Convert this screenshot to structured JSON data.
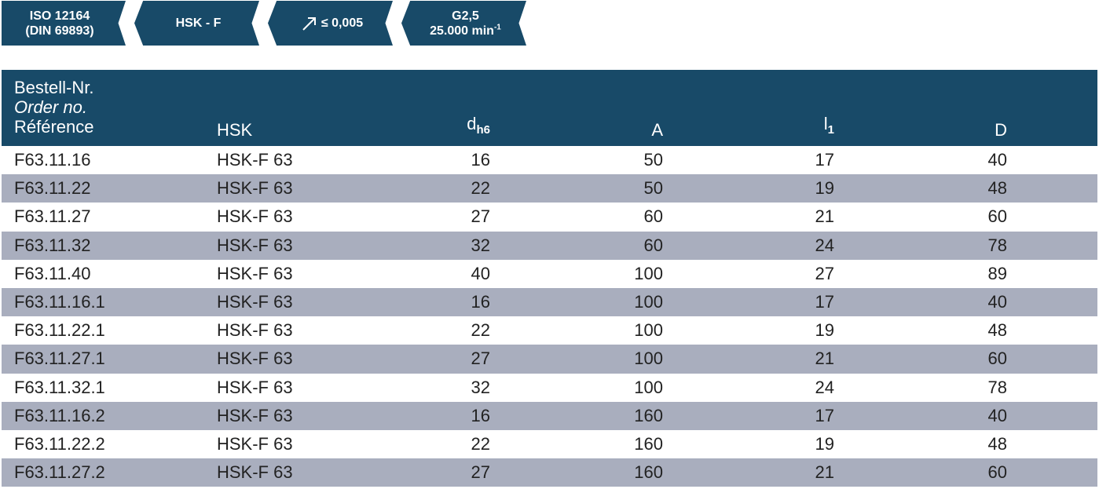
{
  "badges": {
    "norm": {
      "line1": "ISO 12164",
      "line2": "(DIN 69893)"
    },
    "type": {
      "label": "HSK - F"
    },
    "runout": {
      "icon": "runout-arrow-icon",
      "label": "≤ 0,005"
    },
    "balance": {
      "line1": "G2,5",
      "line2_main": "25.000 min",
      "line2_sup": "-1"
    }
  },
  "table": {
    "headers": {
      "order_de": "Bestell-Nr.",
      "order_en": "Order no.",
      "order_fr": "Référence",
      "hsk": "HSK",
      "d_main": "d",
      "d_sub": "h6",
      "a": "A",
      "l_main": "l",
      "l_sub": "1",
      "dd": "D"
    },
    "rows": [
      {
        "order": "F63.11.16",
        "hsk": "HSK-F 63",
        "d": "16",
        "a": "50",
        "l": "17",
        "dd": "40"
      },
      {
        "order": "F63.11.22",
        "hsk": "HSK-F 63",
        "d": "22",
        "a": "50",
        "l": "19",
        "dd": "48"
      },
      {
        "order": "F63.11.27",
        "hsk": "HSK-F 63",
        "d": "27",
        "a": "60",
        "l": "21",
        "dd": "60"
      },
      {
        "order": "F63.11.32",
        "hsk": "HSK-F 63",
        "d": "32",
        "a": "60",
        "l": "24",
        "dd": "78"
      },
      {
        "order": "F63.11.40",
        "hsk": "HSK-F 63",
        "d": "40",
        "a": "100",
        "l": "27",
        "dd": "89"
      },
      {
        "order": "F63.11.16.1",
        "hsk": "HSK-F 63",
        "d": "16",
        "a": "100",
        "l": "17",
        "dd": "40"
      },
      {
        "order": "F63.11.22.1",
        "hsk": "HSK-F 63",
        "d": "22",
        "a": "100",
        "l": "19",
        "dd": "48"
      },
      {
        "order": "F63.11.27.1",
        "hsk": "HSK-F 63",
        "d": "27",
        "a": "100",
        "l": "21",
        "dd": "60"
      },
      {
        "order": "F63.11.32.1",
        "hsk": "HSK-F 63",
        "d": "32",
        "a": "100",
        "l": "24",
        "dd": "78"
      },
      {
        "order": "F63.11.16.2",
        "hsk": "HSK-F 63",
        "d": "16",
        "a": "160",
        "l": "17",
        "dd": "40"
      },
      {
        "order": "F63.11.22.2",
        "hsk": "HSK-F 63",
        "d": "22",
        "a": "160",
        "l": "19",
        "dd": "48"
      },
      {
        "order": "F63.11.27.2",
        "hsk": "HSK-F 63",
        "d": "27",
        "a": "160",
        "l": "21",
        "dd": "60"
      }
    ]
  },
  "colors": {
    "header": "#184a68",
    "row_alt": "#a9aebe",
    "row": "#ffffff"
  }
}
